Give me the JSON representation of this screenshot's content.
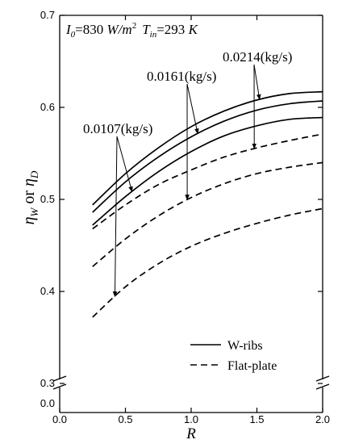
{
  "chart_data": {
    "type": "line",
    "annotation": {
      "i0_symbol": "I",
      "i0_sub": "0",
      "i0_value": "=830 ",
      "i0_unit": "W/m",
      "i0_unit_sup": "2",
      "tin_symbol": "T",
      "tin_sub": "in",
      "tin_value": "=293 ",
      "tin_unit": "K"
    },
    "xlabel": "R",
    "ylabel": {
      "a": "η",
      "a_sub": "W",
      "mid": " or ",
      "b": "η",
      "b_sub": "D"
    },
    "xlim": [
      0.0,
      2.0
    ],
    "ylim": [
      0.3,
      0.7
    ],
    "x_ticks": [
      "0.0",
      "0.5",
      "1.0",
      "1.5",
      "2.0"
    ],
    "y_ticks": [
      "0.3",
      "0.4",
      "0.5",
      "0.6",
      "0.7"
    ],
    "y_break_tick": "0.0",
    "legend": {
      "placement": "bottom-right",
      "entries": [
        {
          "label": "W-ribs",
          "style": "solid"
        },
        {
          "label": "Flat-plate",
          "style": "dashed"
        }
      ]
    },
    "flow_labels": [
      {
        "text": "0.0107(kg/s)",
        "target": 0.0107
      },
      {
        "text": "0.0161(kg/s)",
        "target": 0.0161
      },
      {
        "text": "0.0214(kg/s)",
        "target": 0.0214
      }
    ],
    "x": [
      0.25,
      0.5,
      0.75,
      1.0,
      1.25,
      1.5,
      1.75,
      2.0
    ],
    "series": [
      {
        "key": "w-0.0107",
        "group": "W-ribs",
        "flow": 0.0107,
        "style": "solid",
        "values": [
          0.472,
          0.503,
          0.53,
          0.552,
          0.569,
          0.58,
          0.587,
          0.589
        ]
      },
      {
        "key": "w-0.0161",
        "group": "W-ribs",
        "flow": 0.0161,
        "style": "solid",
        "values": [
          0.486,
          0.519,
          0.546,
          0.568,
          0.585,
          0.597,
          0.604,
          0.607
        ]
      },
      {
        "key": "w-0.0214",
        "group": "W-ribs",
        "flow": 0.0214,
        "style": "solid",
        "values": [
          0.494,
          0.528,
          0.556,
          0.579,
          0.596,
          0.608,
          0.615,
          0.617
        ]
      },
      {
        "key": "fp-0.0214",
        "group": "Flat-plate",
        "flow": 0.0214,
        "style": "dashed",
        "values": [
          0.468,
          0.494,
          0.516,
          0.532,
          0.546,
          0.556,
          0.564,
          0.571
        ]
      },
      {
        "key": "fp-0.0161",
        "group": "Flat-plate",
        "flow": 0.0161,
        "style": "dashed",
        "values": [
          0.427,
          0.457,
          0.482,
          0.502,
          0.517,
          0.528,
          0.535,
          0.54
        ]
      },
      {
        "key": "fp-0.0107",
        "group": "Flat-plate",
        "flow": 0.0107,
        "style": "dashed",
        "values": [
          0.372,
          0.405,
          0.43,
          0.449,
          0.463,
          0.474,
          0.483,
          0.49
        ]
      }
    ]
  }
}
